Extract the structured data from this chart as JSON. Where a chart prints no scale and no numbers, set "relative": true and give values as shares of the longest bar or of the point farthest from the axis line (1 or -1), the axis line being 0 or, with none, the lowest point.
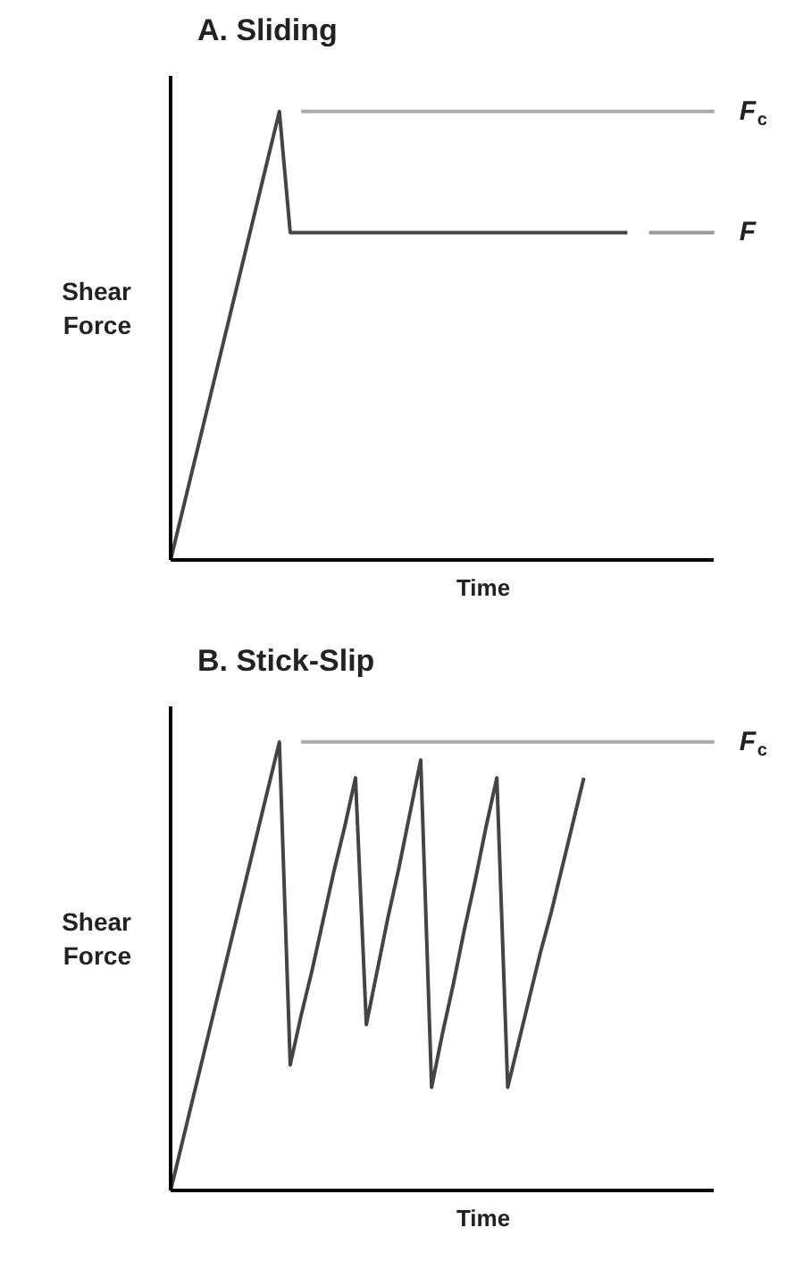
{
  "chart_data": [
    {
      "type": "line",
      "relative": true,
      "title": "A. Sliding",
      "xlabel": "Time",
      "ylabel": "Shear\nForce",
      "categories": [
        null,
        null,
        null,
        null,
        null,
        null,
        null,
        null,
        null,
        null,
        null,
        null,
        null,
        null,
        null,
        null,
        null,
        null,
        null,
        null,
        null,
        null,
        null,
        null,
        null,
        null,
        null,
        null,
        null,
        null,
        null,
        null,
        null,
        null,
        null,
        null,
        null,
        null,
        null,
        null,
        null,
        null,
        null,
        null,
        null,
        null,
        null,
        null,
        null,
        null,
        null
      ],
      "series": [
        {
          "color": "#444444",
          "values": [
            0,
            0.1,
            0.2,
            0.3,
            0.4,
            0.5,
            0.6,
            0.7,
            0.8,
            0.9,
            1.0,
            0.73,
            0.73,
            0.73,
            0.73,
            0.73,
            0.73,
            0.73,
            0.73,
            0.73,
            0.73,
            0.73,
            0.73,
            0.73,
            0.73,
            0.73,
            0.73,
            0.73,
            0.73,
            0.73,
            0.73,
            0.73,
            0.73,
            0.73,
            0.73,
            0.73,
            0.73,
            0.73,
            0.73,
            0.73,
            0.73,
            0.73,
            0.73,
            null,
            null,
            null,
            null,
            null,
            null,
            null,
            null
          ]
        },
        {
          "name": "F",
          "color": "#999999",
          "values": [
            null,
            null,
            null,
            null,
            null,
            null,
            null,
            null,
            null,
            null,
            null,
            null,
            null,
            null,
            null,
            null,
            null,
            null,
            null,
            null,
            null,
            null,
            null,
            null,
            null,
            null,
            null,
            null,
            null,
            null,
            null,
            null,
            null,
            null,
            null,
            null,
            null,
            null,
            null,
            null,
            null,
            null,
            null,
            null,
            0.73,
            0.73,
            0.73,
            0.73,
            0.73,
            0.73,
            0.73
          ]
        },
        {
          "name": "F$_{c}$",
          "color": "#aaaaaa",
          "values": [
            null,
            null,
            null,
            null,
            null,
            null,
            null,
            null,
            null,
            null,
            null,
            null,
            1,
            1,
            1,
            1,
            1,
            1,
            1,
            1,
            1,
            1,
            1,
            1,
            1,
            1,
            1,
            1,
            1,
            1,
            1,
            1,
            1,
            1,
            1,
            1,
            1,
            1,
            1,
            1,
            1,
            1,
            1,
            1,
            1,
            1,
            1,
            1,
            1,
            1,
            1
          ]
        }
      ]
    },
    {
      "type": "line",
      "relative": true,
      "title": "B. Stick-Slip",
      "xlabel": "Time",
      "ylabel": "Shear\nForce",
      "categories": [
        null,
        null,
        null,
        null,
        null,
        null,
        null,
        null,
        null,
        null,
        null,
        null,
        null,
        null,
        null,
        null,
        null,
        null,
        null,
        null,
        null,
        null,
        null,
        null,
        null,
        null,
        null,
        null,
        null,
        null,
        null,
        null,
        null,
        null,
        null,
        null,
        null,
        null,
        null,
        null,
        null,
        null,
        null,
        null,
        null,
        null,
        null,
        null,
        null,
        null,
        null
      ],
      "series": [
        {
          "color": "#444444",
          "values": [
            0,
            0.1,
            0.2,
            0.3,
            0.4,
            0.5,
            0.6,
            0.7,
            0.8,
            0.9,
            1.0,
            0.28,
            0.39,
            0.49,
            0.6,
            0.71,
            0.81,
            0.92,
            0.37,
            0.49,
            0.61,
            0.72,
            0.84,
            0.96,
            0.23,
            0.35,
            0.46,
            0.58,
            0.69,
            0.81,
            0.92,
            0.23,
            0.33,
            0.43,
            0.53,
            0.62,
            0.72,
            0.82,
            0.92,
            null,
            null,
            null,
            null,
            null,
            null,
            null,
            null,
            null,
            null,
            null,
            null
          ]
        },
        {
          "name": "F$_{c}$",
          "color": "#aaaaaa",
          "values": [
            null,
            null,
            null,
            null,
            null,
            null,
            null,
            null,
            null,
            null,
            null,
            null,
            1,
            1,
            1,
            1,
            1,
            1,
            1,
            1,
            1,
            1,
            1,
            1,
            1,
            1,
            1,
            1,
            1,
            1,
            1,
            1,
            1,
            1,
            1,
            1,
            1,
            1,
            1,
            1,
            1,
            1,
            1,
            1,
            1,
            1,
            1,
            1,
            1,
            1,
            1
          ]
        }
      ]
    }
  ]
}
